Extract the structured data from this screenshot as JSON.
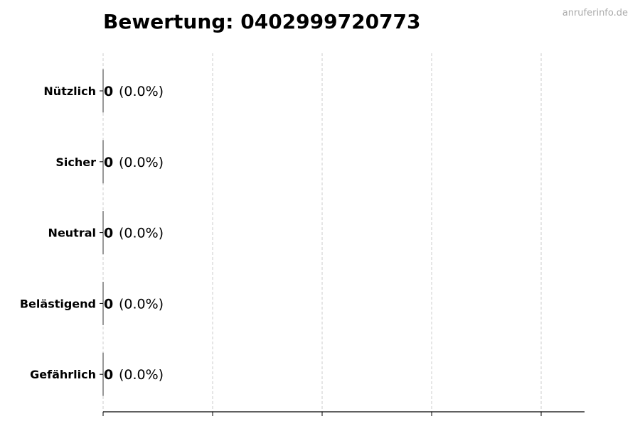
{
  "chart_data": {
    "type": "bar",
    "orientation": "horizontal",
    "title": "Bewertung: 0402999720773",
    "watermark": "anruferinfo.de",
    "categories": [
      "Nützlich",
      "Sicher",
      "Neutral",
      "Belästigend",
      "Gefährlich"
    ],
    "values": [
      0,
      0,
      0,
      0,
      0
    ],
    "value_labels": [
      "0",
      "0",
      "0",
      "0",
      "0"
    ],
    "percent_labels": [
      "(0.0%)",
      "(0.0%)",
      "(0.0%)",
      "(0.0%)",
      "(0.0%)"
    ],
    "xlabel": "",
    "ylabel": "",
    "x_ticks_shown": false,
    "grid": "vertical dashed",
    "colors": {
      "bar_edge": "#333333",
      "grid": "#cccccc",
      "watermark": "#aaaaaa"
    }
  }
}
